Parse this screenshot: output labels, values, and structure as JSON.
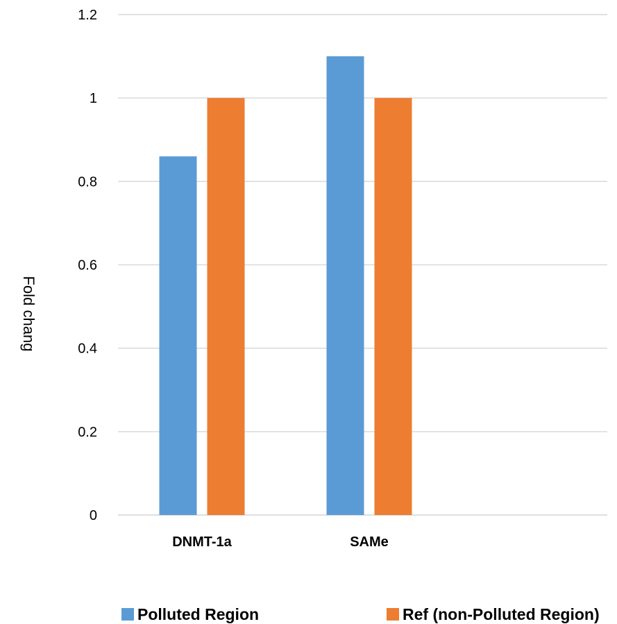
{
  "chart_data": {
    "type": "bar",
    "categories": [
      "DNMT-1a",
      "SAMe"
    ],
    "series": [
      {
        "name": "Polluted Region",
        "values": [
          0.86,
          1.1
        ],
        "color": "#5b9bd5"
      },
      {
        "name": "Ref (non-Polluted Region)",
        "values": [
          1.0,
          1.0
        ],
        "color": "#ed7d31"
      }
    ],
    "ylabel": "Fold chang",
    "ylim": [
      0,
      1.2
    ],
    "yticks": [
      0,
      0.2,
      0.4,
      0.6,
      0.8,
      1,
      1.2
    ],
    "ytick_labels": [
      "0",
      "0.2",
      "0.4",
      "0.6",
      "0.8",
      "1",
      "1.2"
    ],
    "grid": true,
    "legend_position": "bottom"
  }
}
